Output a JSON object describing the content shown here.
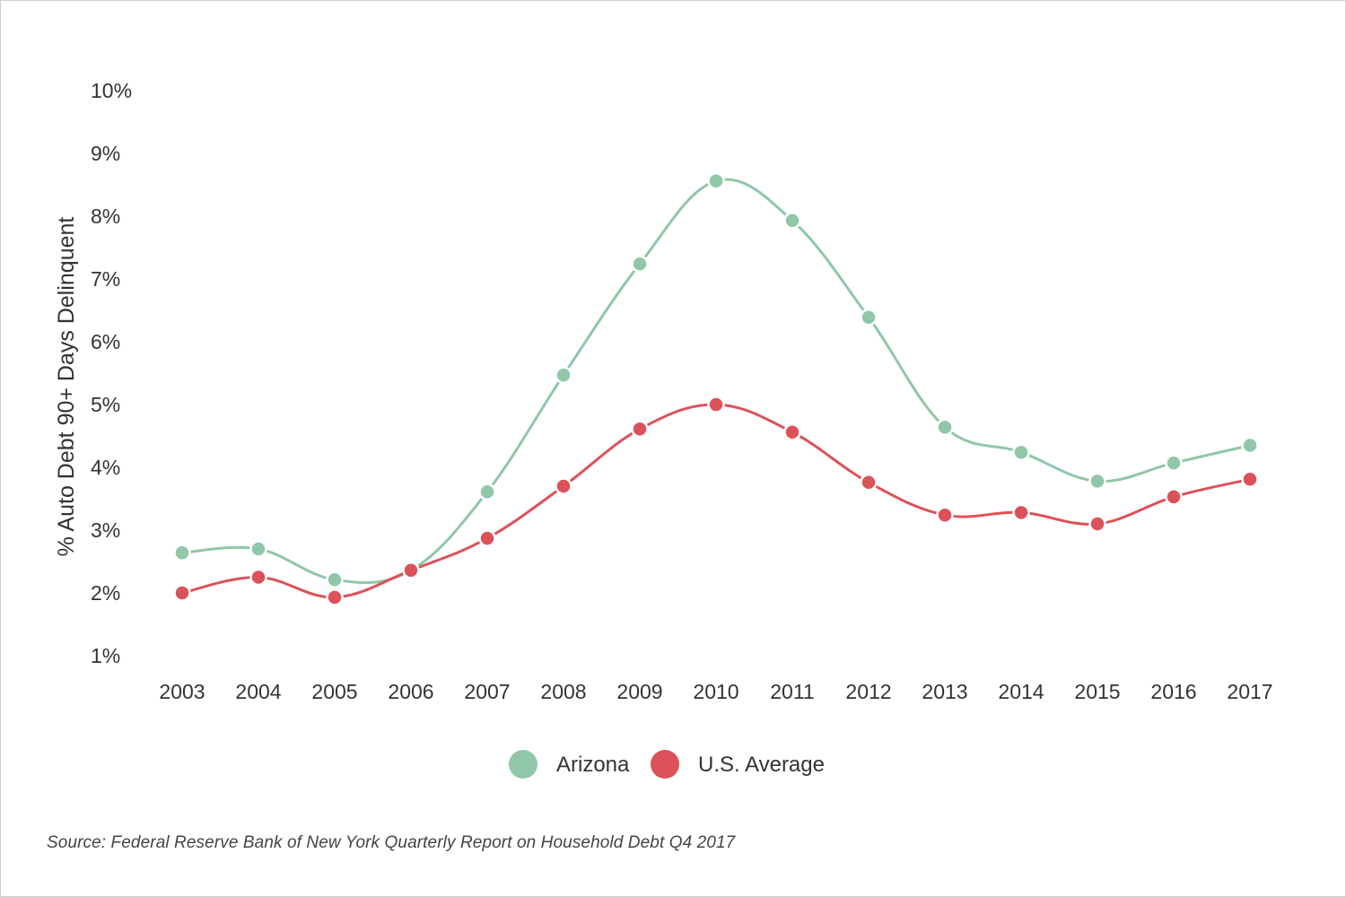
{
  "chart_data": {
    "type": "line",
    "title": "",
    "ylabel": "% Auto Debt 90+ Days Delinquent",
    "xlabel": "",
    "ylim": [
      1,
      10
    ],
    "y_ticks": [
      1,
      2,
      3,
      4,
      5,
      6,
      7,
      8,
      9,
      10
    ],
    "y_tick_labels": [
      "1%",
      "2%",
      "3%",
      "4%",
      "5%",
      "6%",
      "7%",
      "8%",
      "9%",
      "10%"
    ],
    "grid": false,
    "legend_position": "bottom-center",
    "x": [
      "2003",
      "2004",
      "2005",
      "2006",
      "2007",
      "2008",
      "2009",
      "2010",
      "2011",
      "2012",
      "2013",
      "2014",
      "2015",
      "2016",
      "2017"
    ],
    "series": [
      {
        "name": "Arizona",
        "color": "#8fc7a8",
        "values": [
          2.64,
          2.7,
          2.21,
          2.36,
          3.61,
          5.47,
          7.24,
          8.56,
          7.93,
          6.39,
          4.64,
          4.24,
          3.78,
          4.07,
          4.35
        ]
      },
      {
        "name": "U.S. Average",
        "color": "#dc5259",
        "values": [
          2.0,
          2.25,
          1.93,
          2.36,
          2.87,
          3.7,
          4.61,
          5.0,
          4.56,
          3.76,
          3.24,
          3.28,
          3.1,
          3.53,
          3.81
        ]
      }
    ]
  },
  "source": "Source: Federal Reserve Bank of New York Quarterly Report on Household Debt Q4 2017"
}
